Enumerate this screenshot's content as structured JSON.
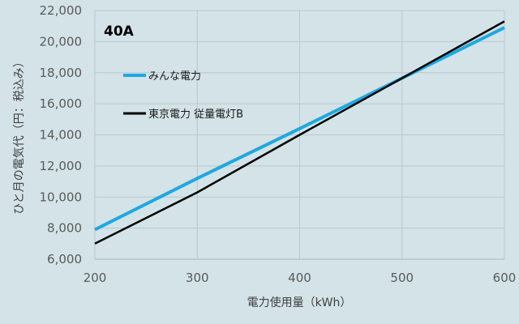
{
  "chart_data": {
    "type": "line",
    "title": "40A",
    "xlabel": "電力使用量（kWh）",
    "ylabel": "ひと月の電気代（円：税込み）",
    "x": [
      200,
      300,
      400,
      500,
      600
    ],
    "xlim": [
      200,
      600
    ],
    "ylim": [
      6000,
      22000
    ],
    "x_ticks": [
      "200",
      "300",
      "400",
      "500",
      "600"
    ],
    "y_ticks": [
      "6,000",
      "8,000",
      "10,000",
      "12,000",
      "14,000",
      "16,000",
      "18,000",
      "20,000",
      "22,000"
    ],
    "grid": true,
    "legend_position": "upper-left",
    "series": [
      {
        "name": "みんな電力",
        "color": "#1fa8e0",
        "values": [
          7900,
          11200,
          14400,
          17650,
          20900
        ]
      },
      {
        "name": "東京電力 従量電灯B",
        "color": "#000000",
        "values": [
          7000,
          10300,
          14000,
          17650,
          21300
        ]
      }
    ]
  }
}
